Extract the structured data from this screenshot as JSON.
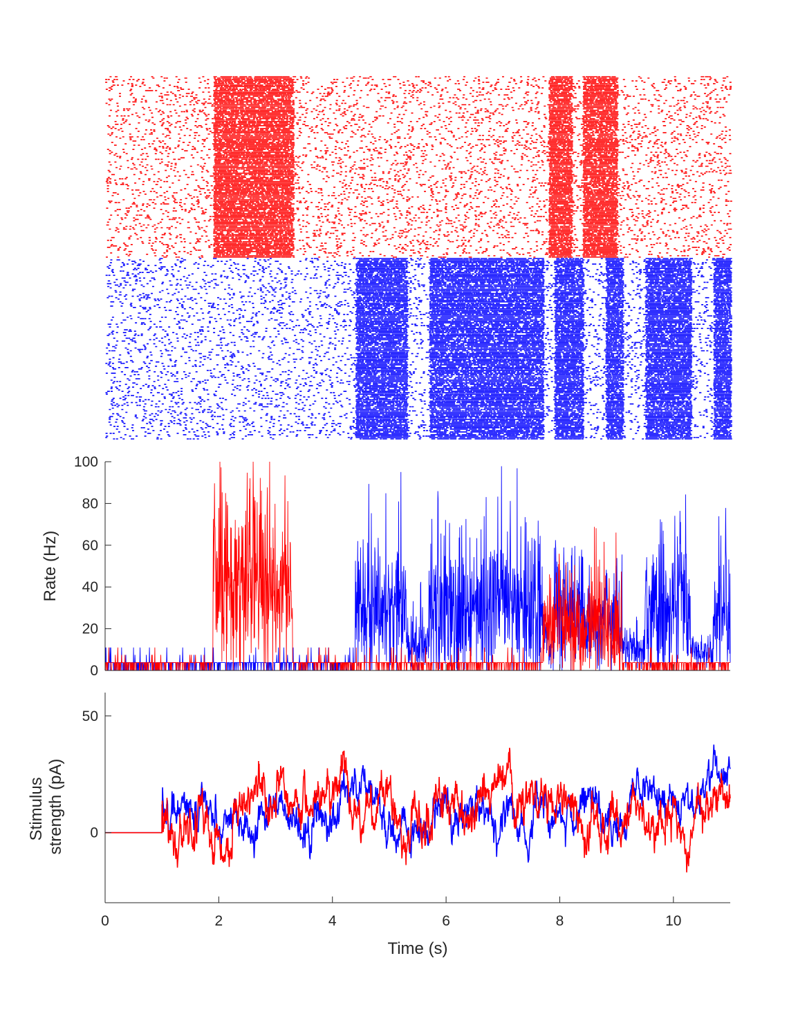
{
  "chart_data": [
    {
      "type": "raster",
      "title": "",
      "xlim": [
        0,
        11
      ],
      "axes_visible": false,
      "series": [
        {
          "population": "excitatory-pool-1",
          "color": "#ff0000",
          "row_fraction_start": 0.5,
          "row_fraction_end": 1.0,
          "baseline_rate_hz": 4,
          "high_activity_intervals_s": [
            [
              1.9,
              3.3
            ],
            [
              7.8,
              8.2
            ],
            [
              8.4,
              9.0
            ]
          ]
        },
        {
          "population": "excitatory-pool-2",
          "color": "#0000ff",
          "row_fraction_start": 0.0,
          "row_fraction_end": 0.5,
          "baseline_rate_hz": 4,
          "high_activity_intervals_s": [
            [
              4.4,
              5.3
            ],
            [
              5.7,
              7.7
            ],
            [
              7.9,
              8.4
            ],
            [
              8.8,
              9.1
            ],
            [
              9.5,
              10.3
            ],
            [
              10.7,
              11.0
            ]
          ]
        }
      ]
    },
    {
      "type": "line",
      "ylabel": "Rate (Hz)",
      "xlim": [
        0,
        11
      ],
      "ylim": [
        0,
        100
      ],
      "yticks": [
        0,
        20,
        40,
        60,
        80,
        100
      ],
      "series": [
        {
          "color": "#0000ff",
          "segments": [
            [
              0,
              1.9,
              4
            ],
            [
              1.9,
              3.3,
              3
            ],
            [
              3.3,
              4.4,
              5
            ],
            [
              4.4,
              5.3,
              30
            ],
            [
              5.3,
              5.7,
              14
            ],
            [
              5.7,
              7.7,
              32
            ],
            [
              7.7,
              7.9,
              14
            ],
            [
              7.9,
              8.4,
              28
            ],
            [
              8.4,
              8.8,
              18
            ],
            [
              8.8,
              9.1,
              26
            ],
            [
              9.1,
              9.5,
              10
            ],
            [
              9.5,
              10.3,
              30
            ],
            [
              10.3,
              10.7,
              8
            ],
            [
              10.7,
              11.0,
              28
            ]
          ]
        },
        {
          "color": "#ff0000",
          "segments": [
            [
              0,
              1.9,
              4
            ],
            [
              1.9,
              3.3,
              40
            ],
            [
              3.3,
              7.7,
              5
            ],
            [
              7.7,
              9.1,
              22
            ],
            [
              9.1,
              11.0,
              5
            ]
          ]
        }
      ]
    },
    {
      "type": "line",
      "xlabel": "Time (s)",
      "ylabel_lines": [
        "Stimulus",
        "strength (pA)"
      ],
      "xlim": [
        0,
        11
      ],
      "ylim": [
        -30,
        60
      ],
      "xticks": [
        0,
        2,
        4,
        6,
        8,
        10
      ],
      "yticks": [
        0,
        50
      ],
      "stimulus_onset_s": 1.0,
      "series": [
        {
          "color": "#0000ff",
          "mean_pA": 10,
          "std_pA": 12
        },
        {
          "color": "#ff0000",
          "mean_pA": 10,
          "std_pA": 14
        }
      ]
    }
  ]
}
